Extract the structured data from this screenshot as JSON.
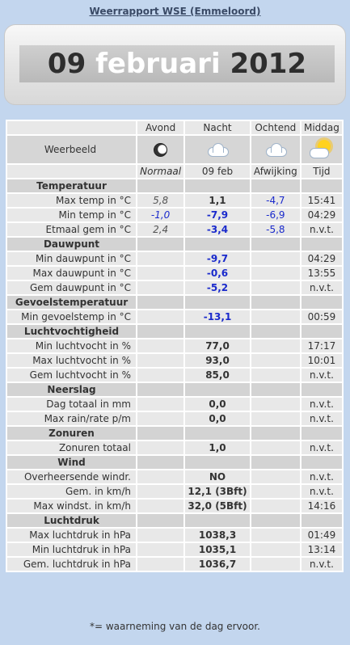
{
  "page": {
    "title": "Weerrapport WSE (Emmeloord)",
    "footnote": "*= waarneming van de dag ervoor."
  },
  "banner": {
    "day": "09",
    "month": "februari",
    "year": "2012"
  },
  "columns": {
    "avond": "Avond",
    "nacht": "Nacht",
    "ochtend": "Ochtend",
    "middag": "Middag"
  },
  "weerbeeld": {
    "label": "Weerbeeld",
    "icons": [
      "moon-icon",
      "cloud-icon",
      "cloud-icon",
      "sun-cloud-icon"
    ]
  },
  "subheader": {
    "normaal": "Normaal",
    "date": "09 feb",
    "afwijking": "Afwijking",
    "tijd": "Tijd"
  },
  "sections": {
    "temperatuur": {
      "title": "Temperatuur",
      "rows": [
        {
          "label": "Max temp in °C",
          "normaal": "5,8",
          "value": "1,1",
          "afwijking": "-4,7",
          "tijd": "15:41"
        },
        {
          "label": "Min temp in °C",
          "normaal": "-1,0",
          "value": "-7,9",
          "afwijking": "-6,9",
          "tijd": "04:29"
        },
        {
          "label": "Etmaal gem in °C",
          "normaal": "2,4",
          "value": "-3,4",
          "afwijking": "-5,8",
          "tijd": "n.v.t."
        }
      ]
    },
    "dauwpunt": {
      "title": "Dauwpunt",
      "rows": [
        {
          "label": "Min dauwpunt in °C",
          "value": "-9,7",
          "tijd": "04:29"
        },
        {
          "label": "Max dauwpunt in °C",
          "value": "-0,6",
          "tijd": "13:55"
        },
        {
          "label": "Gem dauwpunt in °C",
          "value": "-5,2",
          "tijd": "n.v.t."
        }
      ]
    },
    "gevoelstemperatuur": {
      "title": "Gevoelstemperatuur",
      "rows": [
        {
          "label": "Min gevoelstemp in °C",
          "value": "-13,1",
          "tijd": "00:59"
        }
      ]
    },
    "luchtvochtigheid": {
      "title": "Luchtvochtigheid",
      "rows": [
        {
          "label": "Min luchtvocht in %",
          "value": "77,0",
          "tijd": "17:17"
        },
        {
          "label": "Max luchtvocht in %",
          "value": "93,0",
          "tijd": "10:01"
        },
        {
          "label": "Gem luchtvocht in %",
          "value": "85,0",
          "tijd": "n.v.t."
        }
      ]
    },
    "neerslag": {
      "title": "Neerslag",
      "rows": [
        {
          "label": "Dag totaal in mm",
          "value": "0,0",
          "tijd": "n.v.t."
        },
        {
          "label": "Max rain/rate p/m",
          "value": "0,0",
          "tijd": "n.v.t."
        }
      ]
    },
    "zonuren": {
      "title": "Zonuren",
      "rows": [
        {
          "label": "Zonuren totaal",
          "value": "1,0",
          "tijd": "n.v.t."
        }
      ]
    },
    "wind": {
      "title": "Wind",
      "rows": [
        {
          "label": "Overheersende windr.",
          "value": "NO",
          "tijd": "n.v.t."
        },
        {
          "label": "Gem. in km/h",
          "value": "12,1 (3Bft)",
          "tijd": "n.v.t."
        },
        {
          "label": "Max windst. in km/h",
          "value": "32,0 (5Bft)",
          "tijd": "14:16"
        }
      ]
    },
    "luchtdruk": {
      "title": "Luchtdruk",
      "rows": [
        {
          "label": "Max luchtdruk in hPa",
          "value": "1038,3",
          "tijd": "01:49"
        },
        {
          "label": "Min luchtdruk in hPa",
          "value": "1035,1",
          "tijd": "13:14"
        },
        {
          "label": "Gem. luchtdruk in hPa",
          "value": "1036,7",
          "tijd": "n.v.t."
        }
      ]
    }
  }
}
